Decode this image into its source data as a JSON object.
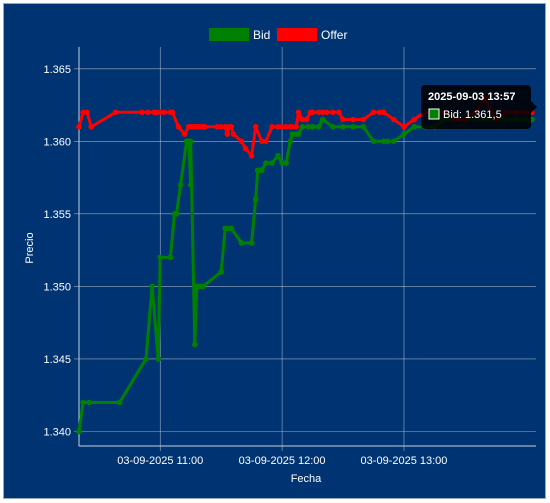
{
  "chart_data": {
    "type": "line",
    "xlabel": "Fecha",
    "ylabel": "Precio",
    "x_ticks": [
      "03-09-2025 11:00",
      "03-09-2025 12:00",
      "03-09-2025 13:00"
    ],
    "y_ticks": [
      "1.340",
      "1.345",
      "1.350",
      "1.355",
      "1.360",
      "1.365"
    ],
    "ylim": [
      1.339,
      1.3665
    ],
    "xlim": [
      "10:20",
      "14:05"
    ],
    "grid": true,
    "legend_position": "top",
    "series": [
      {
        "name": "Bid",
        "color": "#008000",
        "x": [
          "10:20",
          "10:22",
          "10:25",
          "10:40",
          "10:53",
          "10:56",
          "10:59",
          "11:00",
          "11:05",
          "11:07",
          "11:08",
          "11:10",
          "11:13",
          "11:14",
          "11:15",
          "11:15",
          "11:17",
          "11:18",
          "11:18",
          "11:19",
          "11:20",
          "11:21",
          "11:30",
          "11:32",
          "11:33",
          "11:35",
          "11:40",
          "11:45",
          "11:47",
          "11:48",
          "11:49",
          "11:50",
          "11:52",
          "11:55",
          "11:58",
          "12:00",
          "12:02",
          "12:04",
          "12:05",
          "12:07",
          "12:08",
          "12:10",
          "12:13",
          "12:15",
          "12:18",
          "12:20",
          "12:25",
          "12:30",
          "12:35",
          "12:40",
          "12:45",
          "12:50",
          "12:52",
          "12:55",
          "13:00",
          "13:05",
          "13:10",
          "13:15",
          "13:20",
          "13:25",
          "13:30",
          "13:35",
          "13:40",
          "13:45",
          "13:50",
          "13:55",
          "13:57",
          "14:00",
          "14:03"
        ],
        "values": [
          1.34,
          1.342,
          1.342,
          1.342,
          1.345,
          1.35,
          1.345,
          1.352,
          1.352,
          1.355,
          1.355,
          1.357,
          1.36,
          1.36,
          1.357,
          1.36,
          1.346,
          1.35,
          1.35,
          1.35,
          1.35,
          1.35,
          1.351,
          1.354,
          1.354,
          1.354,
          1.353,
          1.353,
          1.356,
          1.358,
          1.358,
          1.358,
          1.3585,
          1.3585,
          1.359,
          1.3585,
          1.3585,
          1.36,
          1.3605,
          1.3605,
          1.3605,
          1.361,
          1.361,
          1.361,
          1.361,
          1.3615,
          1.361,
          1.361,
          1.361,
          1.361,
          1.36,
          1.36,
          1.36,
          1.36,
          1.3605,
          1.361,
          1.361,
          1.361,
          1.3615,
          1.3615,
          1.3615,
          1.3615,
          1.3615,
          1.3615,
          1.3615,
          1.3615,
          1.3615,
          1.3615,
          1.3615
        ]
      },
      {
        "name": "Offer",
        "color": "#ff0000",
        "x": [
          "10:20",
          "10:22",
          "10:24",
          "10:26",
          "10:38",
          "10:51",
          "10:54",
          "10:57",
          "10:58",
          "11:00",
          "11:02",
          "11:05",
          "11:06",
          "11:09",
          "11:12",
          "11:14",
          "11:15",
          "11:16",
          "11:17",
          "11:18",
          "11:19",
          "11:20",
          "11:21",
          "11:22",
          "11:28",
          "11:30",
          "11:32",
          "11:33",
          "11:34",
          "11:35",
          "11:36",
          "11:40",
          "11:42",
          "11:45",
          "11:47",
          "11:50",
          "11:52",
          "11:55",
          "11:58",
          "12:00",
          "12:02",
          "12:04",
          "12:05",
          "12:07",
          "12:08",
          "12:10",
          "12:12",
          "12:14",
          "12:15",
          "12:18",
          "12:20",
          "12:22",
          "12:25",
          "12:28",
          "12:30",
          "12:35",
          "12:40",
          "12:45",
          "12:48",
          "12:50",
          "12:55",
          "13:00",
          "13:05",
          "13:10",
          "13:15",
          "13:20",
          "13:25",
          "13:30",
          "13:35",
          "13:40",
          "13:45",
          "13:50",
          "13:55",
          "14:00",
          "14:03"
        ],
        "values": [
          1.361,
          1.362,
          1.362,
          1.361,
          1.362,
          1.362,
          1.362,
          1.362,
          1.362,
          1.362,
          1.362,
          1.362,
          1.362,
          1.361,
          1.3605,
          1.361,
          1.361,
          1.361,
          1.361,
          1.361,
          1.361,
          1.361,
          1.361,
          1.361,
          1.361,
          1.361,
          1.361,
          1.3605,
          1.361,
          1.361,
          1.3605,
          1.36,
          1.3595,
          1.359,
          1.361,
          1.36,
          1.36,
          1.361,
          1.361,
          1.361,
          1.361,
          1.361,
          1.361,
          1.361,
          1.362,
          1.3615,
          1.3615,
          1.362,
          1.362,
          1.362,
          1.362,
          1.362,
          1.362,
          1.362,
          1.3615,
          1.3615,
          1.3615,
          1.362,
          1.362,
          1.362,
          1.3615,
          1.361,
          1.3615,
          1.362,
          1.362,
          1.362,
          1.3615,
          1.3615,
          1.362,
          1.363,
          1.3615,
          1.362,
          1.362,
          1.362,
          1.362
        ]
      }
    ],
    "tooltip": {
      "title": "2025-09-03 13:57",
      "label": "Bid: 1.361,5",
      "color": "#008000"
    }
  }
}
